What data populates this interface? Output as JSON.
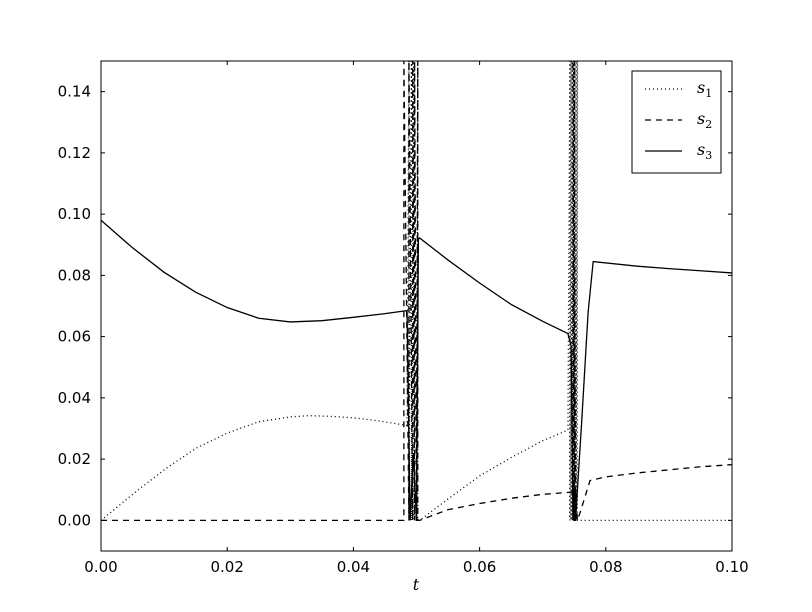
{
  "chart_data": {
    "type": "line",
    "xlabel": "t",
    "ylabel": "",
    "xlim": [
      0.0,
      0.1
    ],
    "ylim": [
      -0.01,
      0.15
    ],
    "xticks": [
      "0.00",
      "0.02",
      "0.04",
      "0.06",
      "0.08",
      "0.10"
    ],
    "yticks": [
      "0.00",
      "0.02",
      "0.04",
      "0.06",
      "0.08",
      "0.10",
      "0.12",
      "0.14"
    ],
    "grid": false,
    "legend_position": "top-right",
    "series": [
      {
        "name": "s",
        "subscript": "1",
        "style": "dotted",
        "color": "#000000",
        "x": [
          0.0,
          0.005,
          0.01,
          0.015,
          0.02,
          0.025,
          0.03,
          0.033,
          0.036,
          0.04,
          0.044,
          0.0485,
          0.0488,
          0.0488,
          0.0492,
          0.0492,
          0.0496,
          0.0496,
          0.05,
          0.0502,
          0.0502,
          0.0505,
          0.055,
          0.06,
          0.065,
          0.07,
          0.074,
          0.0743,
          0.0743,
          0.0745,
          0.0745,
          0.0747,
          0.0747,
          0.0749,
          0.0749,
          0.0751,
          0.0751,
          0.0753,
          0.0753,
          0.0755,
          0.0755,
          0.076,
          0.08,
          0.09,
          0.1
        ],
        "y": [
          0.0,
          0.0085,
          0.0165,
          0.0235,
          0.0285,
          0.0322,
          0.0338,
          0.0342,
          0.034,
          0.0335,
          0.0325,
          0.031,
          0.15,
          0.0,
          0.15,
          0.0,
          0.15,
          0.0,
          0.0,
          0.15,
          0.0,
          0.0,
          0.007,
          0.0145,
          0.0205,
          0.026,
          0.0295,
          0.15,
          0.0,
          0.15,
          0.0,
          0.15,
          0.0,
          0.15,
          0.0,
          0.15,
          0.0,
          0.15,
          0.0,
          0.15,
          0.0,
          0.0,
          0.0,
          0.0,
          0.0
        ]
      },
      {
        "name": "s",
        "subscript": "2",
        "style": "dashed",
        "color": "#000000",
        "x": [
          0.0,
          0.01,
          0.02,
          0.03,
          0.04,
          0.0475,
          0.048,
          0.048,
          0.0488,
          0.0488,
          0.0494,
          0.0494,
          0.0497,
          0.0497,
          0.05,
          0.0502,
          0.0502,
          0.0505,
          0.055,
          0.06,
          0.065,
          0.07,
          0.0745,
          0.0748,
          0.0748,
          0.075,
          0.075,
          0.0752,
          0.0752,
          0.0755,
          0.076,
          0.0775,
          0.08,
          0.085,
          0.09,
          0.095,
          0.1
        ],
        "y": [
          0.0,
          0.0,
          0.0,
          0.0,
          0.0,
          0.0,
          0.0,
          0.15,
          0.0,
          0.15,
          0.0,
          0.15,
          0.0,
          0.15,
          0.0,
          0.15,
          0.0,
          0.0,
          0.0035,
          0.0055,
          0.0072,
          0.0085,
          0.0092,
          0.0092,
          0.15,
          0.0,
          0.15,
          0.0,
          0.01,
          0.0,
          0.003,
          0.013,
          0.0142,
          0.0155,
          0.0165,
          0.0175,
          0.0182
        ]
      },
      {
        "name": "s",
        "subscript": "3",
        "style": "solid",
        "color": "#000000",
        "x": [
          0.0,
          0.005,
          0.01,
          0.015,
          0.02,
          0.025,
          0.03,
          0.035,
          0.04,
          0.045,
          0.0485,
          0.049,
          0.0495,
          0.05,
          0.0503,
          0.0505,
          0.055,
          0.06,
          0.065,
          0.07,
          0.074,
          0.0745,
          0.0748,
          0.0748,
          0.075,
          0.075,
          0.0752,
          0.0752,
          0.0762,
          0.0772,
          0.078,
          0.085,
          0.09,
          0.095,
          0.1
        ],
        "y": [
          0.098,
          0.089,
          0.081,
          0.0745,
          0.0695,
          0.066,
          0.0648,
          0.0652,
          0.0663,
          0.0675,
          0.0685,
          0.0,
          0.022,
          0.0,
          0.0918,
          0.0922,
          0.085,
          0.0775,
          0.0705,
          0.065,
          0.061,
          0.057,
          0.0,
          0.0,
          0.012,
          0.0,
          0.0,
          0.0,
          0.033,
          0.068,
          0.0845,
          0.083,
          0.0822,
          0.0815,
          0.0808
        ]
      }
    ]
  }
}
